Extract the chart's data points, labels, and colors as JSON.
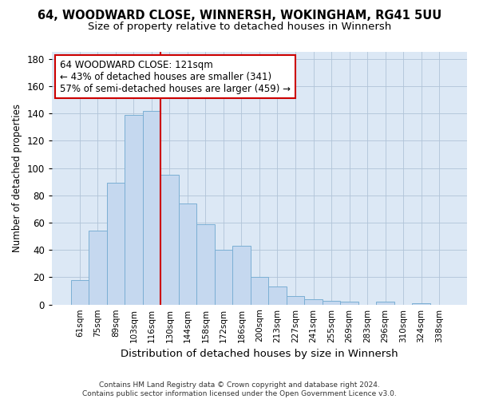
{
  "title1": "64, WOODWARD CLOSE, WINNERSH, WOKINGHAM, RG41 5UU",
  "title2": "Size of property relative to detached houses in Winnersh",
  "xlabel": "Distribution of detached houses by size in Winnersh",
  "ylabel": "Number of detached properties",
  "footer1": "Contains HM Land Registry data © Crown copyright and database right 2024.",
  "footer2": "Contains public sector information licensed under the Open Government Licence v3.0.",
  "annotation_line1": "64 WOODWARD CLOSE: 121sqm",
  "annotation_line2": "← 43% of detached houses are smaller (341)",
  "annotation_line3": "57% of semi-detached houses are larger (459) →",
  "bar_labels": [
    "61sqm",
    "75sqm",
    "89sqm",
    "103sqm",
    "116sqm",
    "130sqm",
    "144sqm",
    "158sqm",
    "172sqm",
    "186sqm",
    "200sqm",
    "213sqm",
    "227sqm",
    "241sqm",
    "255sqm",
    "269sqm",
    "283sqm",
    "296sqm",
    "310sqm",
    "324sqm",
    "338sqm"
  ],
  "bar_values": [
    18,
    54,
    89,
    139,
    142,
    95,
    74,
    59,
    40,
    43,
    20,
    13,
    6,
    4,
    3,
    2,
    0,
    2,
    0,
    1,
    0
  ],
  "bar_color": "#c5d8ef",
  "bar_edge_color": "#7bafd4",
  "vline_color": "#cc0000",
  "vline_x_index": 4.5,
  "annotation_box_color": "#cc0000",
  "background_color": "#ffffff",
  "plot_bg_color": "#dce8f5",
  "grid_color": "#b0c4d8",
  "ylim": [
    0,
    185
  ],
  "yticks": [
    0,
    20,
    40,
    60,
    80,
    100,
    120,
    140,
    160,
    180
  ],
  "title1_fontsize": 10.5,
  "title2_fontsize": 9.5,
  "xlabel_fontsize": 9.5,
  "ylabel_fontsize": 8.5,
  "xtick_fontsize": 7.5,
  "ytick_fontsize": 8.5,
  "footer_fontsize": 6.5,
  "annotation_fontsize": 8.5
}
